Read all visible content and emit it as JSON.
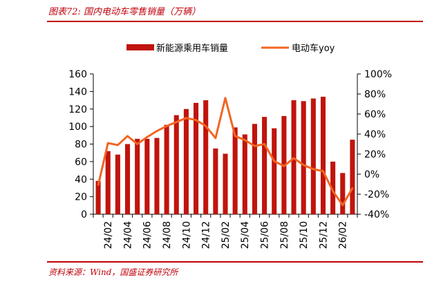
{
  "figure": {
    "title": "图表72:  国内电动车零售销量（万辆）",
    "source": "资料来源：Wind，国盛证券研究所"
  },
  "colors": {
    "bar": "#c0140c",
    "line": "#f26522",
    "accent": "#c0000a"
  },
  "chart_data": {
    "type": "bar",
    "categories": [
      "24/01",
      "24/02",
      "24/03",
      "24/04",
      "24/05",
      "24/06",
      "24/07",
      "24/08",
      "24/09",
      "24/10",
      "24/11",
      "24/12",
      "25/01",
      "25/02",
      "25/03",
      "25/04",
      "25/05",
      "25/06",
      "25/07",
      "25/08",
      "25/09",
      "25/10",
      "25/11",
      "25/12",
      "26/01",
      "26/02",
      "26/03"
    ],
    "x_tick_labels": [
      "24/02",
      "24/04",
      "24/06",
      "24/08",
      "24/10",
      "24/12",
      "25/02",
      "25/04",
      "25/06",
      "25/08",
      "25/10",
      "25/12",
      "26/02"
    ],
    "series": [
      {
        "name": "新能源乘用车销量",
        "type": "bar",
        "axis": "left",
        "values": [
          38,
          72,
          68,
          80,
          86,
          86,
          87,
          102,
          113,
          120,
          127,
          130,
          75,
          69,
          99,
          91,
          103,
          111,
          98,
          112,
          130,
          129,
          132,
          134,
          60,
          47,
          85
        ]
      },
      {
        "name": "电动车yoy",
        "type": "line",
        "axis": "right",
        "values": [
          -11,
          31,
          29,
          38,
          30,
          37,
          43,
          48,
          52,
          56,
          54,
          48,
          36,
          76,
          38,
          34,
          28,
          30,
          13,
          8,
          16,
          9,
          5,
          3,
          -17,
          -31,
          -14
        ]
      }
    ],
    "y_left": {
      "min": 0,
      "max": 160,
      "step": 20,
      "tick_labels": [
        "0",
        "20",
        "40",
        "60",
        "80",
        "100",
        "120",
        "140",
        "160"
      ]
    },
    "y_right": {
      "min": -40,
      "max": 100,
      "step": 20,
      "tick_labels": [
        "-40%",
        "-20%",
        "0%",
        "20%",
        "40%",
        "60%",
        "80%",
        "100%"
      ]
    },
    "legend_position": "top",
    "grid": false
  }
}
